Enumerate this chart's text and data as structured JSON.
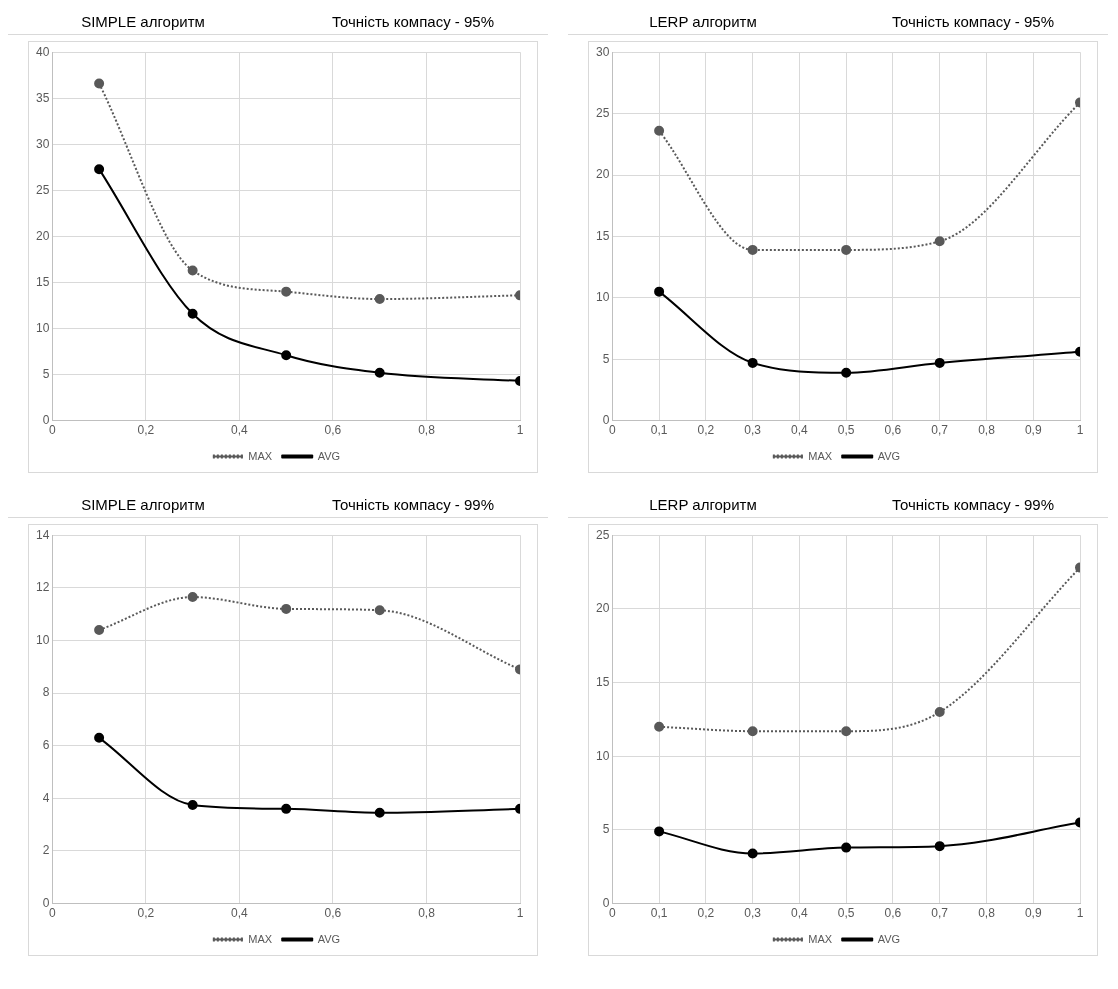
{
  "chart_data": [
    {
      "type": "line",
      "title": "SIMPLE алгоритм",
      "subtitle": "Точність компасу - 95%",
      "x": [
        0.1,
        0.3,
        0.5,
        0.7,
        1
      ],
      "xlim": [
        0,
        1
      ],
      "xticks": [
        {
          "value": 0,
          "label": "0"
        },
        {
          "value": 0.2,
          "label": "0,2"
        },
        {
          "value": 0.4,
          "label": "0,4"
        },
        {
          "value": 0.6,
          "label": "0,6"
        },
        {
          "value": 0.8,
          "label": "0,8"
        },
        {
          "value": 1,
          "label": "1"
        }
      ],
      "ylim": [
        0,
        40
      ],
      "yticks": [
        0,
        5,
        10,
        15,
        20,
        25,
        30,
        35,
        40
      ],
      "grid": true,
      "legend": "bottom",
      "marker": "circle",
      "series": [
        {
          "name": "MAX",
          "color": "#595959",
          "line_style": "dotted",
          "values": [
            36.6,
            16.3,
            14.0,
            13.2,
            13.6
          ]
        },
        {
          "name": "AVG",
          "color": "#000000",
          "line_style": "solid",
          "values": [
            27.3,
            11.6,
            7.1,
            5.2,
            4.3
          ]
        }
      ]
    },
    {
      "type": "line",
      "title": "LERP алгоритм",
      "subtitle": "Точність компасу - 95%",
      "x": [
        0.1,
        0.3,
        0.5,
        0.7,
        1
      ],
      "xlim": [
        0,
        1
      ],
      "xticks": [
        {
          "value": 0,
          "label": "0"
        },
        {
          "value": 0.1,
          "label": "0,1"
        },
        {
          "value": 0.2,
          "label": "0,2"
        },
        {
          "value": 0.3,
          "label": "0,3"
        },
        {
          "value": 0.4,
          "label": "0,4"
        },
        {
          "value": 0.5,
          "label": "0,5"
        },
        {
          "value": 0.6,
          "label": "0,6"
        },
        {
          "value": 0.7,
          "label": "0,7"
        },
        {
          "value": 0.8,
          "label": "0,8"
        },
        {
          "value": 0.9,
          "label": "0,9"
        },
        {
          "value": 1,
          "label": "1"
        }
      ],
      "ylim": [
        0,
        30
      ],
      "yticks": [
        0,
        5,
        10,
        15,
        20,
        25,
        30
      ],
      "grid": true,
      "legend": "bottom",
      "marker": "circle",
      "series": [
        {
          "name": "MAX",
          "color": "#595959",
          "line_style": "dotted",
          "values": [
            23.6,
            13.9,
            13.9,
            14.6,
            25.9
          ]
        },
        {
          "name": "AVG",
          "color": "#000000",
          "line_style": "solid",
          "values": [
            10.5,
            4.7,
            3.9,
            4.7,
            5.6
          ]
        }
      ]
    },
    {
      "type": "line",
      "title": "SIMPLE алгоритм",
      "subtitle": "Точність компасу - 99%",
      "x": [
        0.1,
        0.3,
        0.5,
        0.7,
        1
      ],
      "xlim": [
        0,
        1
      ],
      "xticks": [
        {
          "value": 0,
          "label": "0"
        },
        {
          "value": 0.2,
          "label": "0,2"
        },
        {
          "value": 0.4,
          "label": "0,4"
        },
        {
          "value": 0.6,
          "label": "0,6"
        },
        {
          "value": 0.8,
          "label": "0,8"
        },
        {
          "value": 1,
          "label": "1"
        }
      ],
      "ylim": [
        0,
        14
      ],
      "yticks": [
        0,
        2,
        4,
        6,
        8,
        10,
        12,
        14
      ],
      "grid": true,
      "legend": "bottom",
      "marker": "circle",
      "series": [
        {
          "name": "MAX",
          "color": "#595959",
          "line_style": "dotted",
          "values": [
            10.4,
            11.65,
            11.2,
            11.15,
            8.9
          ]
        },
        {
          "name": "AVG",
          "color": "#000000",
          "line_style": "solid",
          "values": [
            6.3,
            3.75,
            3.6,
            3.45,
            3.6
          ]
        }
      ]
    },
    {
      "type": "line",
      "title": "LERP алгоритм",
      "subtitle": "Точність компасу - 99%",
      "x": [
        0.1,
        0.3,
        0.5,
        0.7,
        1
      ],
      "xlim": [
        0,
        1
      ],
      "xticks": [
        {
          "value": 0,
          "label": "0"
        },
        {
          "value": 0.1,
          "label": "0,1"
        },
        {
          "value": 0.2,
          "label": "0,2"
        },
        {
          "value": 0.3,
          "label": "0,3"
        },
        {
          "value": 0.4,
          "label": "0,4"
        },
        {
          "value": 0.5,
          "label": "0,5"
        },
        {
          "value": 0.6,
          "label": "0,6"
        },
        {
          "value": 0.7,
          "label": "0,7"
        },
        {
          "value": 0.8,
          "label": "0,8"
        },
        {
          "value": 0.9,
          "label": "0,9"
        },
        {
          "value": 1,
          "label": "1"
        }
      ],
      "ylim": [
        0,
        25
      ],
      "yticks": [
        0,
        5,
        10,
        15,
        20,
        25
      ],
      "grid": true,
      "legend": "bottom",
      "marker": "circle",
      "series": [
        {
          "name": "MAX",
          "color": "#595959",
          "line_style": "dotted",
          "values": [
            12.0,
            11.7,
            11.7,
            13.0,
            22.8
          ]
        },
        {
          "name": "AVG",
          "color": "#000000",
          "line_style": "solid",
          "values": [
            4.9,
            3.4,
            3.8,
            3.9,
            5.5
          ]
        }
      ]
    }
  ]
}
